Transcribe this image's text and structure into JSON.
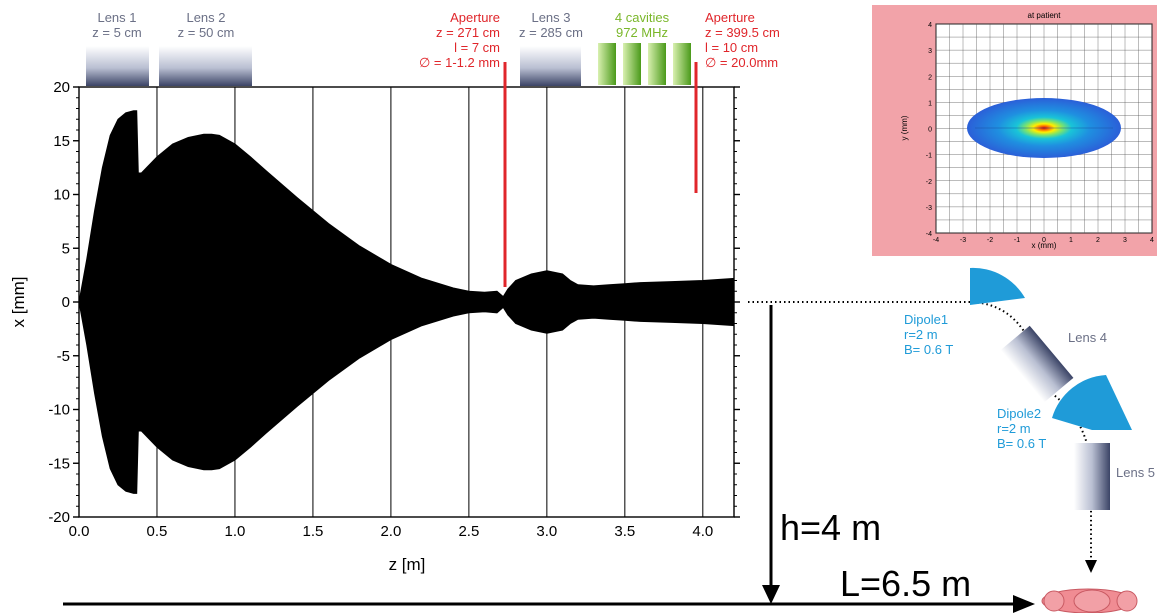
{
  "chart_data": {
    "type": "area",
    "title": "",
    "xlabel": "z [m]",
    "ylabel": "x [mm]",
    "xlim": [
      0,
      4.2
    ],
    "ylim": [
      -20,
      20
    ],
    "xticks": [
      "0.0",
      "0.5",
      "1.0",
      "1.5",
      "2.0",
      "2.5",
      "3.0",
      "3.5",
      "4.0"
    ],
    "yticks": [
      "20",
      "15",
      "10",
      "5",
      "0",
      "-5",
      "-10",
      "-15",
      "-20"
    ],
    "grid": "vertical",
    "series": [
      {
        "z": [
          0.0,
          0.05,
          0.1,
          0.15,
          0.2,
          0.25,
          0.3,
          0.35,
          0.37,
          0.38,
          0.4,
          0.5,
          0.6,
          0.7,
          0.8,
          0.85,
          0.9,
          1.0,
          1.1,
          1.2,
          1.4,
          1.6,
          1.8,
          2.0,
          2.2,
          2.4,
          2.5,
          2.6,
          2.68,
          2.72,
          2.75,
          2.8,
          2.9,
          3.0,
          3.1,
          3.15,
          3.2,
          3.3,
          3.4,
          3.5,
          3.6,
          3.8,
          4.0,
          4.2
        ],
        "envelope": [
          0.0,
          4.0,
          8.5,
          12.5,
          15.5,
          17.0,
          17.6,
          17.8,
          17.8,
          12.0,
          12.0,
          13.5,
          14.7,
          15.3,
          15.6,
          15.6,
          15.5,
          14.7,
          13.5,
          12.2,
          9.7,
          7.3,
          5.2,
          3.5,
          2.2,
          1.3,
          1.0,
          0.9,
          1.0,
          0.5,
          1.2,
          2.0,
          2.6,
          2.9,
          2.6,
          2.0,
          1.6,
          1.5,
          1.6,
          1.7,
          1.8,
          1.9,
          2.0,
          2.2
        ]
      }
    ]
  },
  "elements": {
    "lens1": {
      "name": "Lens 1",
      "z": "z = 5 cm"
    },
    "lens2": {
      "name": "Lens 2",
      "z": "z = 50 cm"
    },
    "aperture1": {
      "name": "Aperture",
      "z": "z = 271 cm",
      "l": "l = 7 cm",
      "d": "∅ = 1-1.2 mm"
    },
    "lens3": {
      "name": "Lens 3",
      "z": "z = 285 cm"
    },
    "cavities": {
      "name": "4 cavities",
      "freq": "972 MHz"
    },
    "aperture2": {
      "name": "Aperture",
      "z": "z = 399.5 cm",
      "l": "l = 10 cm",
      "d": "∅ = 20.0mm"
    }
  },
  "inset": {
    "title": "at patient",
    "xlabel": "x (mm)",
    "ylabel": "y (mm)",
    "xticks": [
      "-4",
      "-3",
      "-2",
      "-1",
      "0",
      "1",
      "2",
      "3",
      "4"
    ],
    "yticks": [
      "4",
      "3",
      "2",
      "1",
      "0",
      "-1",
      "-2",
      "-3",
      "-4"
    ],
    "background": "#f2a3a9"
  },
  "gantry": {
    "dipole1": {
      "name": "Dipole1",
      "r": "r=2 m",
      "b": "B= 0.6 T"
    },
    "dipole2": {
      "name": "Dipole2",
      "r": "r=2 m",
      "b": "B= 0.6 T"
    },
    "lens4": "Lens 4",
    "lens5": "Lens 5",
    "h": "h=4 m",
    "L": "L=6.5 m"
  },
  "colors": {
    "red": "#e0262b",
    "green": "#7ab72a",
    "gray_text": "#6b7086",
    "blue": "#1f9bd8",
    "beam": "#000000",
    "patient": "#f08c93"
  }
}
